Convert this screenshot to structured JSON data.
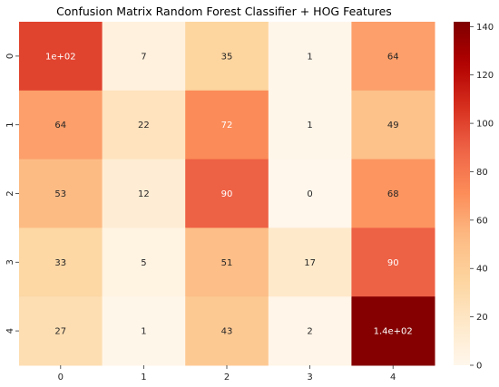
{
  "chart_data": {
    "type": "heatmap",
    "title": "Confusion Matrix Random Forest Classifier + HOG Features",
    "x_categories": [
      "0",
      "1",
      "2",
      "3",
      "4"
    ],
    "y_categories": [
      "0",
      "1",
      "2",
      "3",
      "4"
    ],
    "values": [
      [
        100,
        7,
        35,
        1,
        64
      ],
      [
        64,
        22,
        72,
        1,
        49
      ],
      [
        53,
        12,
        90,
        0,
        68
      ],
      [
        33,
        5,
        51,
        17,
        90
      ],
      [
        27,
        1,
        43,
        2,
        140
      ]
    ],
    "annotations": [
      [
        "1e+02",
        "7",
        "35",
        "1",
        "64"
      ],
      [
        "64",
        "22",
        "72",
        "1",
        "49"
      ],
      [
        "53",
        "12",
        "90",
        "0",
        "68"
      ],
      [
        "33",
        "5",
        "51",
        "17",
        "90"
      ],
      [
        "27",
        "1",
        "43",
        "2",
        "1.4e+02"
      ]
    ],
    "colormap": "OrRd",
    "colorbar": {
      "range": [
        0,
        142
      ],
      "ticks": [
        0,
        20,
        40,
        60,
        80,
        100,
        120,
        140
      ]
    },
    "xlabel": "",
    "ylabel": ""
  }
}
